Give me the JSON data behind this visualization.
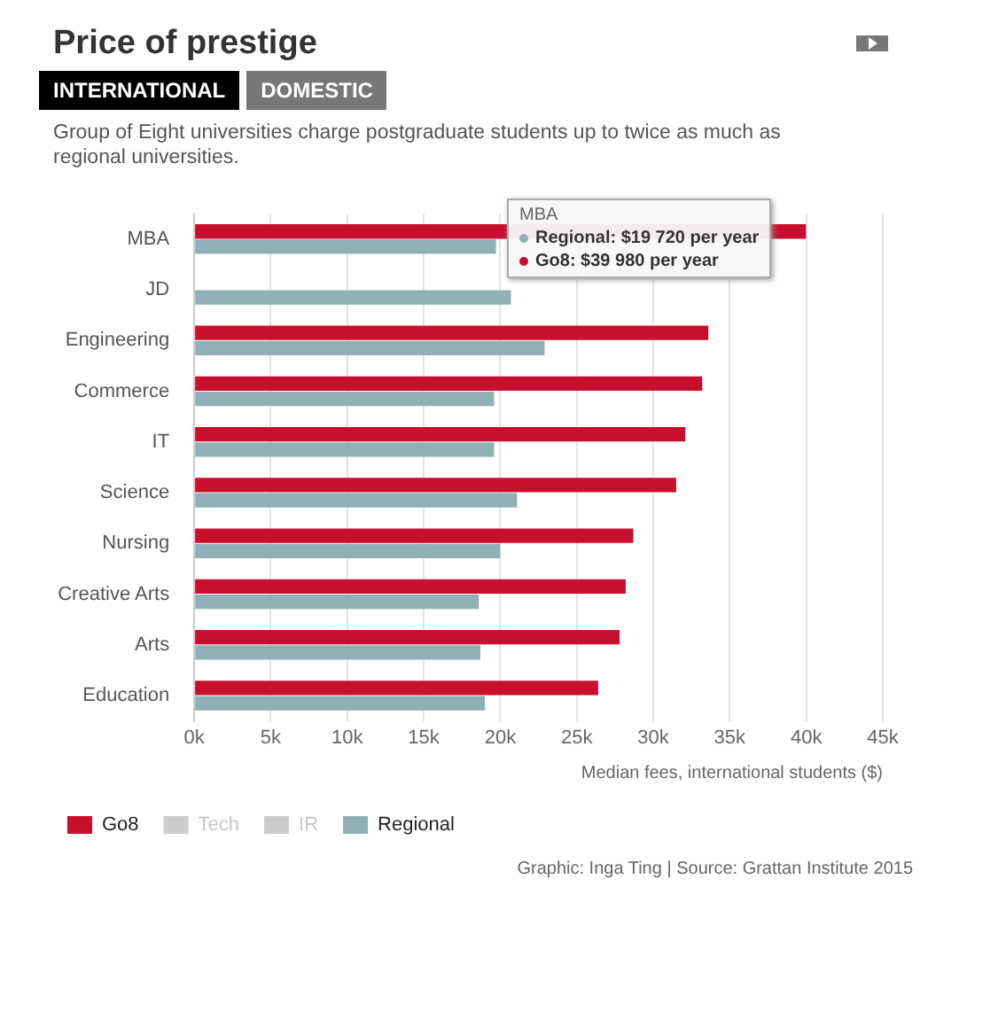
{
  "chart_data": {
    "type": "bar",
    "orientation": "horizontal",
    "title": "Price of prestige",
    "subtitle": "Group of Eight universities charge postgraduate students up to twice as much as regional universities.",
    "xlabel": "Median fees, international students ($)",
    "categories": [
      "MBA",
      "JD",
      "Engineering",
      "Commerce",
      "IT",
      "Science",
      "Nursing",
      "Creative Arts",
      "Arts",
      "Education"
    ],
    "series": [
      {
        "name": "Go8",
        "color": "#c8102e",
        "values": [
          39980,
          null,
          33600,
          33200,
          32100,
          31500,
          28700,
          28200,
          27800,
          26400
        ]
      },
      {
        "name": "Tech",
        "color": "#cccccc",
        "values": [
          null,
          null,
          null,
          null,
          null,
          null,
          null,
          null,
          null,
          null
        ]
      },
      {
        "name": "IR",
        "color": "#cccccc",
        "values": [
          null,
          null,
          null,
          null,
          null,
          null,
          null,
          null,
          null,
          null
        ]
      },
      {
        "name": "Regional",
        "color": "#8fb1b5",
        "values": [
          19720,
          20700,
          22900,
          19600,
          19600,
          21100,
          20000,
          18600,
          18700,
          19000
        ]
      }
    ],
    "xlim": [
      0,
      45000
    ],
    "xticks": [
      {
        "value": 0,
        "label": "0k"
      },
      {
        "value": 5000,
        "label": "5k"
      },
      {
        "value": 10000,
        "label": "10k"
      },
      {
        "value": 15000,
        "label": "15k"
      },
      {
        "value": 20000,
        "label": "20k"
      },
      {
        "value": 25000,
        "label": "25k"
      },
      {
        "value": 30000,
        "label": "30k"
      },
      {
        "value": 35000,
        "label": "35k"
      },
      {
        "value": 40000,
        "label": "40k"
      },
      {
        "value": 45000,
        "label": "45k"
      }
    ],
    "grid": "x",
    "legend": "bottom",
    "annotations": [
      "INTERNATIONAL",
      "DOMESTIC",
      "MBA",
      "Regional: $19 720 per year",
      "Go8: $39 980 per year",
      "Graphic: Inga Ting | Source: Grattan Institute 2015"
    ]
  }
}
